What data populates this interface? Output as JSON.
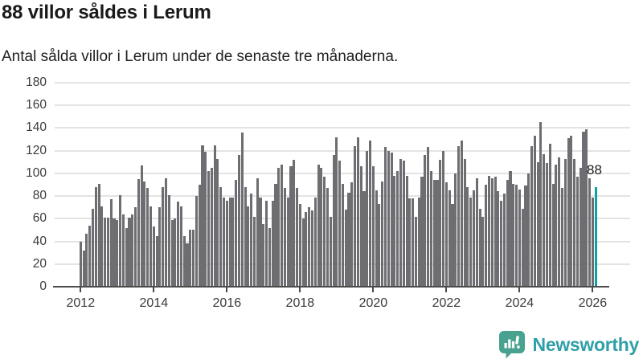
{
  "header": {
    "title": "88 villor såldes i Lerum",
    "subtitle": "Antal sålda villor i Lerum under de senaste tre månaderna."
  },
  "chart_data": {
    "type": "bar",
    "title": "88 villor såldes i Lerum",
    "subtitle": "Antal sålda villor i Lerum under de senaste tre månaderna.",
    "x_unit": "month",
    "start_year": 2012,
    "start_month": 1,
    "x_tick_labels": [
      "2012",
      "2014",
      "2016",
      "2018",
      "2020",
      "2022",
      "2024",
      "2026"
    ],
    "yticks": [
      0,
      20,
      40,
      60,
      80,
      100,
      120,
      140,
      160,
      180
    ],
    "ylim": [
      0,
      180
    ],
    "grid": true,
    "legend": false,
    "values": [
      40,
      32,
      47,
      54,
      69,
      88,
      91,
      71,
      61,
      61,
      77,
      60,
      59,
      81,
      64,
      52,
      61,
      64,
      70,
      95,
      107,
      93,
      87,
      71,
      53,
      45,
      70,
      88,
      96,
      81,
      59,
      60,
      75,
      71,
      45,
      38,
      50,
      50,
      80,
      90,
      125,
      119,
      102,
      105,
      125,
      113,
      88,
      79,
      76,
      79,
      79,
      94,
      116,
      136,
      88,
      71,
      82,
      62,
      96,
      79,
      55,
      76,
      52,
      76,
      91,
      105,
      108,
      87,
      79,
      106,
      112,
      87,
      73,
      60,
      66,
      70,
      67,
      79,
      108,
      105,
      97,
      87,
      62,
      116,
      132,
      111,
      91,
      68,
      83,
      92,
      124,
      132,
      106,
      84,
      120,
      129,
      106,
      85,
      73,
      93,
      123,
      120,
      118,
      98,
      102,
      113,
      111,
      98,
      78,
      78,
      62,
      79,
      97,
      116,
      123,
      102,
      94,
      94,
      112,
      120,
      92,
      85,
      73,
      100,
      124,
      129,
      113,
      88,
      79,
      85,
      96,
      69,
      62,
      90,
      98,
      96,
      97,
      84,
      76,
      82,
      94,
      102,
      91,
      90,
      86,
      69,
      89,
      100,
      124,
      133,
      110,
      145,
      117,
      109,
      126,
      91,
      108,
      114,
      87,
      113,
      131,
      133,
      113,
      97,
      105,
      137,
      139,
      96,
      79,
      88
    ],
    "highlight_last_bar": true,
    "highlight_value_label": "88",
    "colors": {
      "bar": "#6d6d72",
      "highlight": "#14a0a2",
      "grid": "#e3e3e3",
      "axis": "#4b4b4b"
    }
  },
  "annotation": {
    "label": "88"
  },
  "footer": {
    "brand": "Newsworthy"
  }
}
